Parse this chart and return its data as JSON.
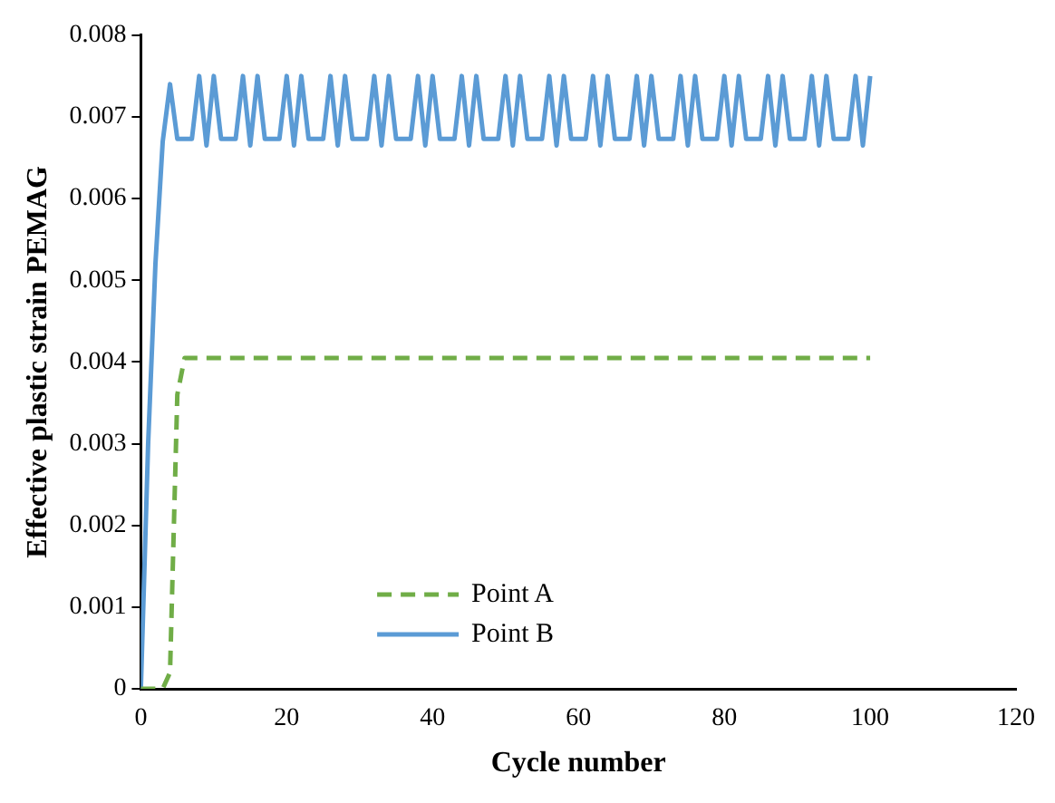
{
  "chart_data": {
    "type": "line",
    "xlabel": "Cycle number",
    "ylabel": "Effective plastic strain PEMAG",
    "x": [
      0,
      1,
      2,
      3,
      4,
      5,
      6,
      7,
      8,
      9,
      10,
      11,
      12,
      13,
      14,
      15,
      16,
      17,
      18,
      19,
      20,
      21,
      22,
      23,
      24,
      25,
      26,
      27,
      28,
      29,
      30,
      31,
      32,
      33,
      34,
      35,
      36,
      37,
      38,
      39,
      40,
      41,
      42,
      43,
      44,
      45,
      46,
      47,
      48,
      49,
      50,
      51,
      52,
      53,
      54,
      55,
      56,
      57,
      58,
      59,
      60,
      61,
      62,
      63,
      64,
      65,
      66,
      67,
      68,
      69,
      70,
      71,
      72,
      73,
      74,
      75,
      76,
      77,
      78,
      79,
      80,
      81,
      82,
      83,
      84,
      85,
      86,
      87,
      88,
      89,
      90,
      91,
      92,
      93,
      94,
      95,
      96,
      97,
      98,
      99,
      100
    ],
    "series": [
      {
        "name": "Point A",
        "color": "#70ad47",
        "line_style": "dashed",
        "values": [
          0,
          0,
          0,
          0,
          0.0002,
          0.0036,
          0.00405,
          0.00405,
          0.00405,
          0.00405,
          0.00405,
          0.00405,
          0.00405,
          0.00405,
          0.00405,
          0.00405,
          0.00405,
          0.00405,
          0.00405,
          0.00405,
          0.00405,
          0.00405,
          0.00405,
          0.00405,
          0.00405,
          0.00405,
          0.00405,
          0.00405,
          0.00405,
          0.00405,
          0.00405,
          0.00405,
          0.00405,
          0.00405,
          0.00405,
          0.00405,
          0.00405,
          0.00405,
          0.00405,
          0.00405,
          0.00405,
          0.00405,
          0.00405,
          0.00405,
          0.00405,
          0.00405,
          0.00405,
          0.00405,
          0.00405,
          0.00405,
          0.00405,
          0.00405,
          0.00405,
          0.00405,
          0.00405,
          0.00405,
          0.00405,
          0.00405,
          0.00405,
          0.00405,
          0.00405,
          0.00405,
          0.00405,
          0.00405,
          0.00405,
          0.00405,
          0.00405,
          0.00405,
          0.00405,
          0.00405,
          0.00405,
          0.00405,
          0.00405,
          0.00405,
          0.00405,
          0.00405,
          0.00405,
          0.00405,
          0.00405,
          0.00405,
          0.00405,
          0.00405,
          0.00405,
          0.00405,
          0.00405,
          0.00405,
          0.00405,
          0.00405,
          0.00405,
          0.00405,
          0.00405,
          0.00405,
          0.00405,
          0.00405,
          0.00405,
          0.00405,
          0.00405,
          0.00405,
          0.00405,
          0.00405,
          0.00405
        ]
      },
      {
        "name": "Point B",
        "color": "#5b9bd5",
        "line_style": "solid",
        "values": [
          0,
          0.003,
          0.0052,
          0.0067,
          0.0074,
          0.00673,
          0.00673,
          0.00673,
          0.0075,
          0.00665,
          0.0075,
          0.00673,
          0.00673,
          0.00673,
          0.0075,
          0.00665,
          0.0075,
          0.00673,
          0.00673,
          0.00673,
          0.0075,
          0.00665,
          0.0075,
          0.00673,
          0.00673,
          0.00673,
          0.0075,
          0.00665,
          0.0075,
          0.00673,
          0.00673,
          0.00673,
          0.0075,
          0.00665,
          0.0075,
          0.00673,
          0.00673,
          0.00673,
          0.0075,
          0.00665,
          0.0075,
          0.00673,
          0.00673,
          0.00673,
          0.0075,
          0.00665,
          0.0075,
          0.00673,
          0.00673,
          0.00673,
          0.0075,
          0.00665,
          0.0075,
          0.00673,
          0.00673,
          0.00673,
          0.0075,
          0.00665,
          0.0075,
          0.00673,
          0.00673,
          0.00673,
          0.0075,
          0.00665,
          0.0075,
          0.00673,
          0.00673,
          0.00673,
          0.0075,
          0.00665,
          0.0075,
          0.00673,
          0.00673,
          0.00673,
          0.0075,
          0.00665,
          0.0075,
          0.00673,
          0.00673,
          0.00673,
          0.0075,
          0.00665,
          0.0075,
          0.00673,
          0.00673,
          0.00673,
          0.0075,
          0.00665,
          0.0075,
          0.00673,
          0.00673,
          0.00673,
          0.0075,
          0.00665,
          0.0075,
          0.00673,
          0.00673,
          0.00673,
          0.0075,
          0.00665,
          0.0075
        ]
      }
    ],
    "xlim": [
      0,
      120
    ],
    "xticks": [
      0,
      20,
      40,
      60,
      80,
      100,
      120
    ],
    "ylim": [
      0,
      0.008
    ],
    "yticks": [
      0,
      0.001,
      0.002,
      0.003,
      0.004,
      0.005,
      0.006,
      0.007,
      0.008
    ],
    "grid": false,
    "legend": "bottom",
    "marker": "none"
  }
}
